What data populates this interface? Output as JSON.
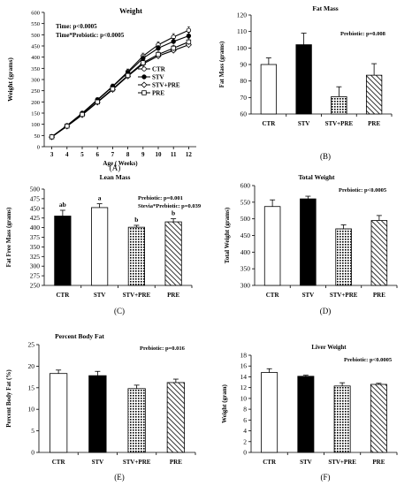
{
  "panels": [
    {
      "id": "A",
      "panel_label": "(A)",
      "title": "Weight",
      "annotations": [
        "Time: p<0.0005",
        "Time*Prebiotic: p<0.0005"
      ],
      "legend": [
        "CTR",
        "STV",
        "STV+PRE",
        "PRE"
      ]
    },
    {
      "id": "B",
      "panel_label": "(B)",
      "title": "Fat Mass",
      "annotations": [
        "Prebiotic: p=0.008"
      ]
    },
    {
      "id": "C",
      "panel_label": "(C)",
      "title": "Lean Mass",
      "annotations": [
        "Prebiotic: p=0.001",
        "Stevia*Prebiotic: p=0.039"
      ]
    },
    {
      "id": "D",
      "panel_label": "(D)",
      "title": "Total Weight",
      "annotations": [
        "Prebiotic: p<0.0005"
      ]
    },
    {
      "id": "E",
      "panel_label": "(E)",
      "title": "Percent Body Fat",
      "annotations": [
        "Prebiotic: p=0.016"
      ]
    },
    {
      "id": "F",
      "panel_label": "(F)",
      "title": "Liver Weight",
      "annotations": [
        "Prebiotic: p<0.0005"
      ]
    }
  ],
  "chart_data": [
    {
      "type": "line",
      "title": "Weight",
      "xlabel": "Age ( Weeks)",
      "ylabel": "Weight (grams)",
      "x": [
        3,
        4,
        5,
        6,
        7,
        8,
        9,
        10,
        11,
        12
      ],
      "xlim": [
        2.5,
        12.5
      ],
      "ylim": [
        0,
        600
      ],
      "yticks": [
        0,
        50,
        100,
        150,
        200,
        250,
        300,
        350,
        400,
        450,
        500,
        550,
        600
      ],
      "series": [
        {
          "name": "CTR",
          "values": [
            45,
            95,
            150,
            210,
            270,
            335,
            405,
            455,
            490,
            520
          ],
          "errors": [
            5,
            6,
            8,
            9,
            10,
            12,
            13,
            14,
            15,
            16
          ],
          "marker": "circle-open"
        },
        {
          "name": "STV",
          "values": [
            44,
            94,
            148,
            208,
            268,
            330,
            395,
            440,
            470,
            495
          ],
          "errors": [
            5,
            6,
            8,
            9,
            10,
            11,
            12,
            13,
            14,
            15
          ],
          "marker": "circle-filled"
        },
        {
          "name": "STV+PRE",
          "values": [
            43,
            91,
            142,
            198,
            255,
            315,
            370,
            405,
            430,
            455
          ],
          "errors": [
            5,
            6,
            7,
            8,
            9,
            10,
            11,
            12,
            13,
            14
          ],
          "marker": "diamond"
        },
        {
          "name": "PRE",
          "values": [
            44,
            92,
            144,
            200,
            258,
            318,
            375,
            412,
            440,
            468
          ],
          "errors": [
            5,
            6,
            7,
            8,
            9,
            10,
            11,
            12,
            13,
            14
          ],
          "marker": "square"
        }
      ],
      "legend_position": "right"
    },
    {
      "type": "bar",
      "title": "Fat Mass",
      "ylabel": "Fat Mass (grams)",
      "categories": [
        "CTR",
        "STV",
        "STV+PRE",
        "PRE"
      ],
      "values": [
        90,
        102,
        70.5,
        83.5
      ],
      "errors": [
        4,
        7,
        6,
        7
      ],
      "ylim": [
        60,
        120
      ],
      "yticks": [
        60,
        70,
        80,
        90,
        100,
        110,
        120
      ],
      "fills": [
        "white",
        "black",
        "dots",
        "hatch"
      ]
    },
    {
      "type": "bar",
      "title": "Lean Mass",
      "ylabel": "Fat Free Mass (grams)",
      "categories": [
        "CTR",
        "STV",
        "STV+PRE",
        "PRE"
      ],
      "values": [
        430,
        452,
        401,
        415
      ],
      "errors": [
        15,
        10,
        5,
        8
      ],
      "letters": [
        "ab",
        "a",
        "b",
        "b"
      ],
      "ylim": [
        250,
        500
      ],
      "yticks": [
        250,
        275,
        300,
        325,
        350,
        375,
        400,
        425,
        450,
        475,
        500
      ],
      "fills": [
        "black",
        "white",
        "dots",
        "hatch"
      ]
    },
    {
      "type": "bar",
      "title": "Total Weight",
      "ylabel": "Total Weight (grams)",
      "categories": [
        "CTR",
        "STV",
        "STV+PRE",
        "PRE"
      ],
      "values": [
        537,
        560,
        470,
        495
      ],
      "errors": [
        20,
        8,
        12,
        15
      ],
      "ylim": [
        300,
        600
      ],
      "yticks": [
        300,
        350,
        400,
        450,
        500,
        550,
        600
      ],
      "fills": [
        "white",
        "black",
        "dots",
        "hatch"
      ]
    },
    {
      "type": "bar",
      "title": "Percent Body Fat",
      "ylabel": "Percent Body Fat (%)",
      "categories": [
        "CTR",
        "STV",
        "STV+PRE",
        "PRE"
      ],
      "values": [
        18.3,
        17.8,
        14.8,
        16.2
      ],
      "errors": [
        0.8,
        1.0,
        0.8,
        0.8
      ],
      "ylim": [
        0,
        25
      ],
      "yticks": [
        0,
        5,
        10,
        15,
        20,
        25
      ],
      "fills": [
        "white",
        "black",
        "dots",
        "hatch"
      ]
    },
    {
      "type": "bar",
      "title": "Liver Weight",
      "ylabel": "Weight (gram)",
      "categories": [
        "CTR",
        "STV",
        "STV+PRE",
        "PRE"
      ],
      "values": [
        14.8,
        14.1,
        12.3,
        12.6
      ],
      "errors": [
        0.7,
        0.2,
        0.6,
        0.2
      ],
      "ylim": [
        0,
        18
      ],
      "yticks": [
        0,
        2,
        4,
        6,
        8,
        10,
        12,
        14,
        16,
        18
      ],
      "fills": [
        "white",
        "black",
        "dots",
        "hatch"
      ]
    }
  ]
}
